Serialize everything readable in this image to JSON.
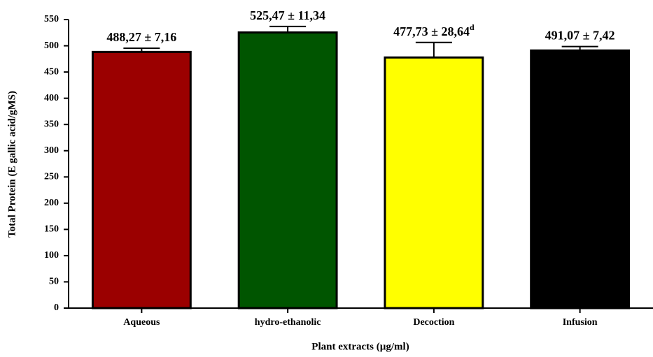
{
  "chart_data": {
    "type": "bar",
    "x_label": "Plant extracts (µg/ml)",
    "y_label": "Total Protein (E gallic acid/gMS)",
    "categories": [
      "Aqueous",
      "hydro-ethanolic",
      "Decoction",
      "Infusion"
    ],
    "values": [
      488.27,
      525.47,
      477.73,
      491.07
    ],
    "errors": [
      7.16,
      11.34,
      28.64,
      7.42
    ],
    "value_labels": [
      "488,27 ± 7,16",
      "525,47 ± 11,34",
      "477,73 ± 28,64",
      "491,07 ± 7,42"
    ],
    "value_label_notes": [
      null,
      null,
      "d",
      null
    ],
    "colors": [
      "#9b0000",
      "#005500",
      "#ffff00",
      "#000000"
    ],
    "ylim": [
      0,
      550
    ],
    "yticks": [
      0,
      50,
      100,
      150,
      200,
      250,
      300,
      350,
      400,
      450,
      500,
      550
    ],
    "grid": false
  }
}
